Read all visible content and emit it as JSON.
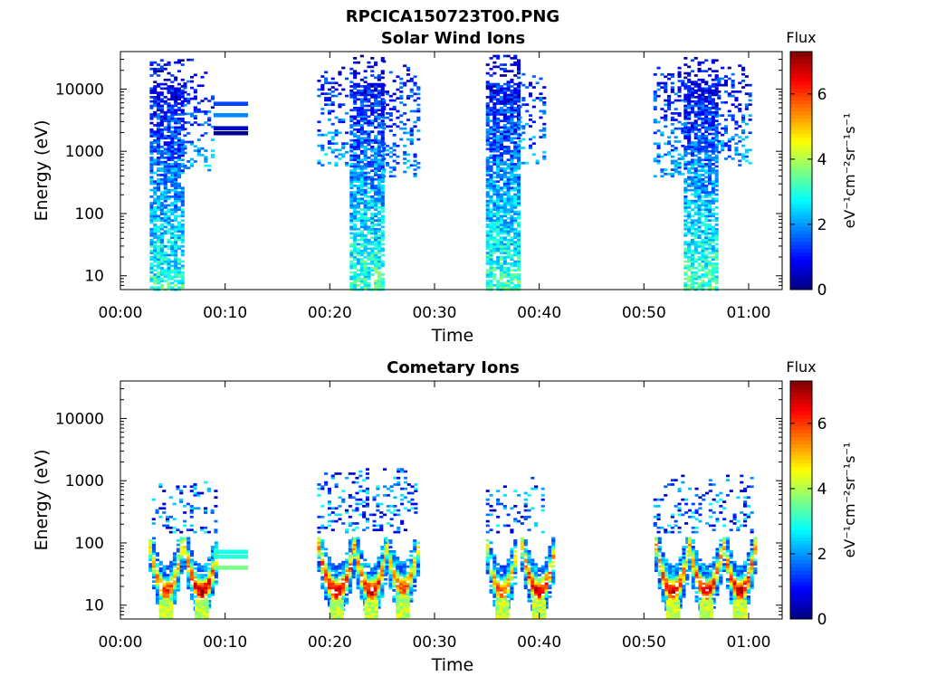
{
  "figure_title": "RPCICA150723T00.PNG",
  "chart_data": [
    {
      "type": "heatmap",
      "title": "Solar Wind Ions",
      "xlabel": "Time",
      "ylabel": "Energy (eV)",
      "yscale": "log",
      "x_ticks": [
        "00:00",
        "00:10",
        "00:20",
        "00:30",
        "00:40",
        "00:50",
        "01:00"
      ],
      "y_ticks": [
        "10",
        "100",
        "1000",
        "10000"
      ],
      "xlim_minutes": [
        0,
        63.2
      ],
      "ylim_eV": [
        6,
        40000
      ],
      "colorbar": {
        "title": "Flux",
        "unit": "eV⁻¹cm⁻²sr⁻¹s⁻¹",
        "ticks": [
          "0",
          "2",
          "4",
          "6"
        ],
        "range": [
          0,
          7.3
        ],
        "colormap": "jet"
      },
      "grid": false,
      "bursts": [
        {
          "t_start_min": 2.8,
          "t_end_min": 6.0,
          "e_min_eV": 6,
          "e_max_eV": 30000,
          "flux_low_energy": 3.0,
          "flux_high_energy": 0.6,
          "density": 0.75
        },
        {
          "t_start_min": 6.0,
          "t_end_min": 8.8,
          "e_min_eV": 500,
          "e_max_eV": 30000,
          "flux_low_energy": 2.0,
          "flux_high_energy": 0.8,
          "density": 0.25
        },
        {
          "t_start_min": 18.8,
          "t_end_min": 21.5,
          "e_min_eV": 600,
          "e_max_eV": 30000,
          "flux_low_energy": 2.0,
          "flux_high_energy": 0.8,
          "density": 0.25
        },
        {
          "t_start_min": 21.9,
          "t_end_min": 25.0,
          "e_min_eV": 6,
          "e_max_eV": 35000,
          "flux_low_energy": 3.2,
          "flux_high_energy": 0.6,
          "density": 0.75
        },
        {
          "t_start_min": 25.0,
          "t_end_min": 28.3,
          "e_min_eV": 400,
          "e_max_eV": 30000,
          "flux_low_energy": 2.0,
          "flux_high_energy": 0.9,
          "density": 0.25
        },
        {
          "t_start_min": 34.9,
          "t_end_min": 38.0,
          "e_min_eV": 6,
          "e_max_eV": 35000,
          "flux_low_energy": 3.2,
          "flux_high_energy": 0.6,
          "density": 0.8
        },
        {
          "t_start_min": 38.0,
          "t_end_min": 40.5,
          "e_min_eV": 600,
          "e_max_eV": 20000,
          "flux_low_energy": 2.0,
          "flux_high_energy": 0.9,
          "density": 0.22
        },
        {
          "t_start_min": 50.9,
          "t_end_min": 53.8,
          "e_min_eV": 400,
          "e_max_eV": 30000,
          "flux_low_energy": 2.0,
          "flux_high_energy": 0.9,
          "density": 0.3
        },
        {
          "t_start_min": 53.8,
          "t_end_min": 57.0,
          "e_min_eV": 6,
          "e_max_eV": 35000,
          "flux_low_energy": 3.2,
          "flux_high_energy": 0.6,
          "density": 0.75
        },
        {
          "t_start_min": 57.0,
          "t_end_min": 60.2,
          "e_min_eV": 600,
          "e_max_eV": 25000,
          "flux_low_energy": 2.0,
          "flux_high_energy": 0.9,
          "density": 0.3
        }
      ],
      "bands": [
        {
          "t_start_min": 8.9,
          "t_end_min": 12.2,
          "e_eV": 5800,
          "flux": 1.4
        },
        {
          "t_start_min": 8.9,
          "t_end_min": 12.2,
          "e_eV": 3800,
          "flux": 1.9
        },
        {
          "t_start_min": 8.9,
          "t_end_min": 12.2,
          "e_eV": 2350,
          "flux": 0.5
        },
        {
          "t_start_min": 8.9,
          "t_end_min": 12.2,
          "e_eV": 1950,
          "flux": 0.15
        }
      ]
    },
    {
      "type": "heatmap",
      "title": "Cometary Ions",
      "xlabel": "Time",
      "ylabel": "Energy (eV)",
      "yscale": "log",
      "x_ticks": [
        "00:00",
        "00:10",
        "00:20",
        "00:30",
        "00:40",
        "00:50",
        "01:00"
      ],
      "y_ticks": [
        "10",
        "100",
        "1000",
        "10000"
      ],
      "xlim_minutes": [
        0,
        63.2
      ],
      "ylim_eV": [
        6,
        40000
      ],
      "colorbar": {
        "title": "Flux",
        "unit": "eV⁻¹cm⁻²sr⁻¹s⁻¹",
        "ticks": [
          "0",
          "2",
          "4",
          "6"
        ],
        "range": [
          0,
          7.3
        ],
        "colormap": "jet"
      },
      "grid": false,
      "scatter": [
        {
          "t_start_min": 3.0,
          "t_end_min": 9.2,
          "e_min_eV": 150,
          "e_max_eV": 1000,
          "density": 0.25
        },
        {
          "t_start_min": 18.8,
          "t_end_min": 28.3,
          "e_min_eV": 150,
          "e_max_eV": 1600,
          "density": 0.25
        },
        {
          "t_start_min": 34.9,
          "t_end_min": 40.5,
          "e_min_eV": 150,
          "e_max_eV": 1300,
          "density": 0.2
        },
        {
          "t_start_min": 50.9,
          "t_end_min": 60.2,
          "e_min_eV": 150,
          "e_max_eV": 1300,
          "density": 0.25
        }
      ],
      "arcs": [
        {
          "t_center_min": 4.2,
          "half_width_min": 1.5,
          "e_low_eV": 12,
          "e_high_eV": 110,
          "peak_flux": 6.3
        },
        {
          "t_center_min": 7.6,
          "half_width_min": 1.6,
          "e_low_eV": 12,
          "e_high_eV": 110,
          "peak_flux": 7.0
        },
        {
          "t_center_min": 20.5,
          "half_width_min": 1.7,
          "e_low_eV": 12,
          "e_high_eV": 110,
          "peak_flux": 7.2
        },
        {
          "t_center_min": 23.8,
          "half_width_min": 1.6,
          "e_low_eV": 12,
          "e_high_eV": 110,
          "peak_flux": 6.8
        },
        {
          "t_center_min": 26.8,
          "half_width_min": 1.5,
          "e_low_eV": 14,
          "e_high_eV": 100,
          "peak_flux": 6.0
        },
        {
          "t_center_min": 36.3,
          "half_width_min": 1.4,
          "e_low_eV": 12,
          "e_high_eV": 100,
          "peak_flux": 6.0
        },
        {
          "t_center_min": 39.8,
          "half_width_min": 1.6,
          "e_low_eV": 12,
          "e_high_eV": 110,
          "peak_flux": 7.0
        },
        {
          "t_center_min": 52.6,
          "half_width_min": 1.6,
          "e_low_eV": 12,
          "e_high_eV": 110,
          "peak_flux": 6.8
        },
        {
          "t_center_min": 55.8,
          "half_width_min": 1.6,
          "e_low_eV": 12,
          "e_high_eV": 110,
          "peak_flux": 6.8
        },
        {
          "t_center_min": 59.0,
          "half_width_min": 1.5,
          "e_low_eV": 12,
          "e_high_eV": 110,
          "peak_flux": 7.0
        }
      ],
      "bands": [
        {
          "t_start_min": 8.9,
          "t_end_min": 12.2,
          "e_eV": 72,
          "flux": 2.9
        },
        {
          "t_start_min": 8.9,
          "t_end_min": 12.2,
          "e_eV": 60,
          "flux": 3.0
        },
        {
          "t_start_min": 8.9,
          "t_end_min": 12.2,
          "e_eV": 40,
          "flux": 3.6
        }
      ]
    }
  ]
}
